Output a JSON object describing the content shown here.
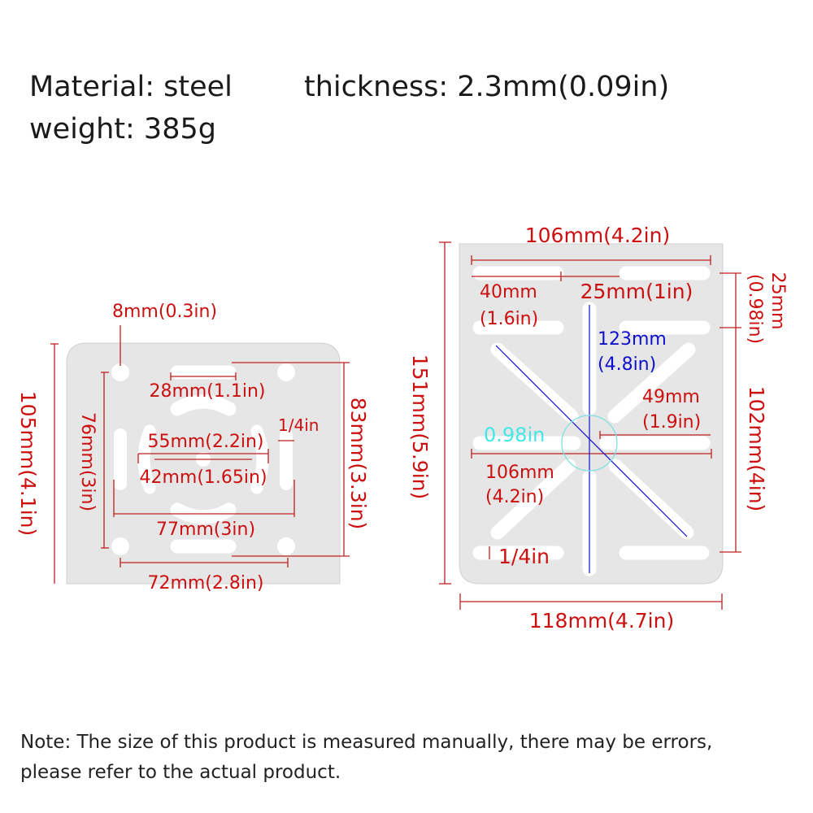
{
  "header": {
    "material": "Material: steel",
    "thickness": "thickness: 2.3mm(0.09in)",
    "weight": "weight: 385g"
  },
  "small_plate": {
    "hole_diameter": "8mm(0.3in)",
    "top_slot": "28mm(1.1in)",
    "outer_inner_span": "55mm(2.2in)",
    "slot_width": "1/4in",
    "inner_span": "42mm(1.65in)",
    "outer_span": "77mm(3in)",
    "hole_spacing_horizontal": "72mm(2.8in)",
    "hole_spacing_vertical": "76mm(3in)",
    "height": "105mm(4.1in)",
    "slot_spacing_vertical": "83mm(3.3in)"
  },
  "large_plate": {
    "top_width": "106mm(4.2in)",
    "slot_length_mm": "40mm",
    "slot_length_in": "(1.6in)",
    "slot_gap": "25mm(1in)",
    "row_spacing_mm": "25mm",
    "row_spacing_in": "(0.98in)",
    "diagonal_mm": "123mm",
    "diagonal_in": "(4.8in)",
    "half_slot_mm": "49mm",
    "half_slot_in": "(1.9in)",
    "center_circle": "0.98in",
    "middle_width_mm": "106mm",
    "middle_width_in": "(4.2in)",
    "height": "151mm(5.9in)",
    "slot_rows_span": "102mm(4in)",
    "slot_width": "1/4in",
    "width": "118mm(4.7in)"
  },
  "note": {
    "line1": "Note: The size of this product is measured manually, there may be errors,",
    "line2": "please refer to the actual product."
  },
  "colors": {
    "dimension": "#cc1010",
    "diagonal": "#1010cc",
    "circle": "#40e8e8"
  }
}
